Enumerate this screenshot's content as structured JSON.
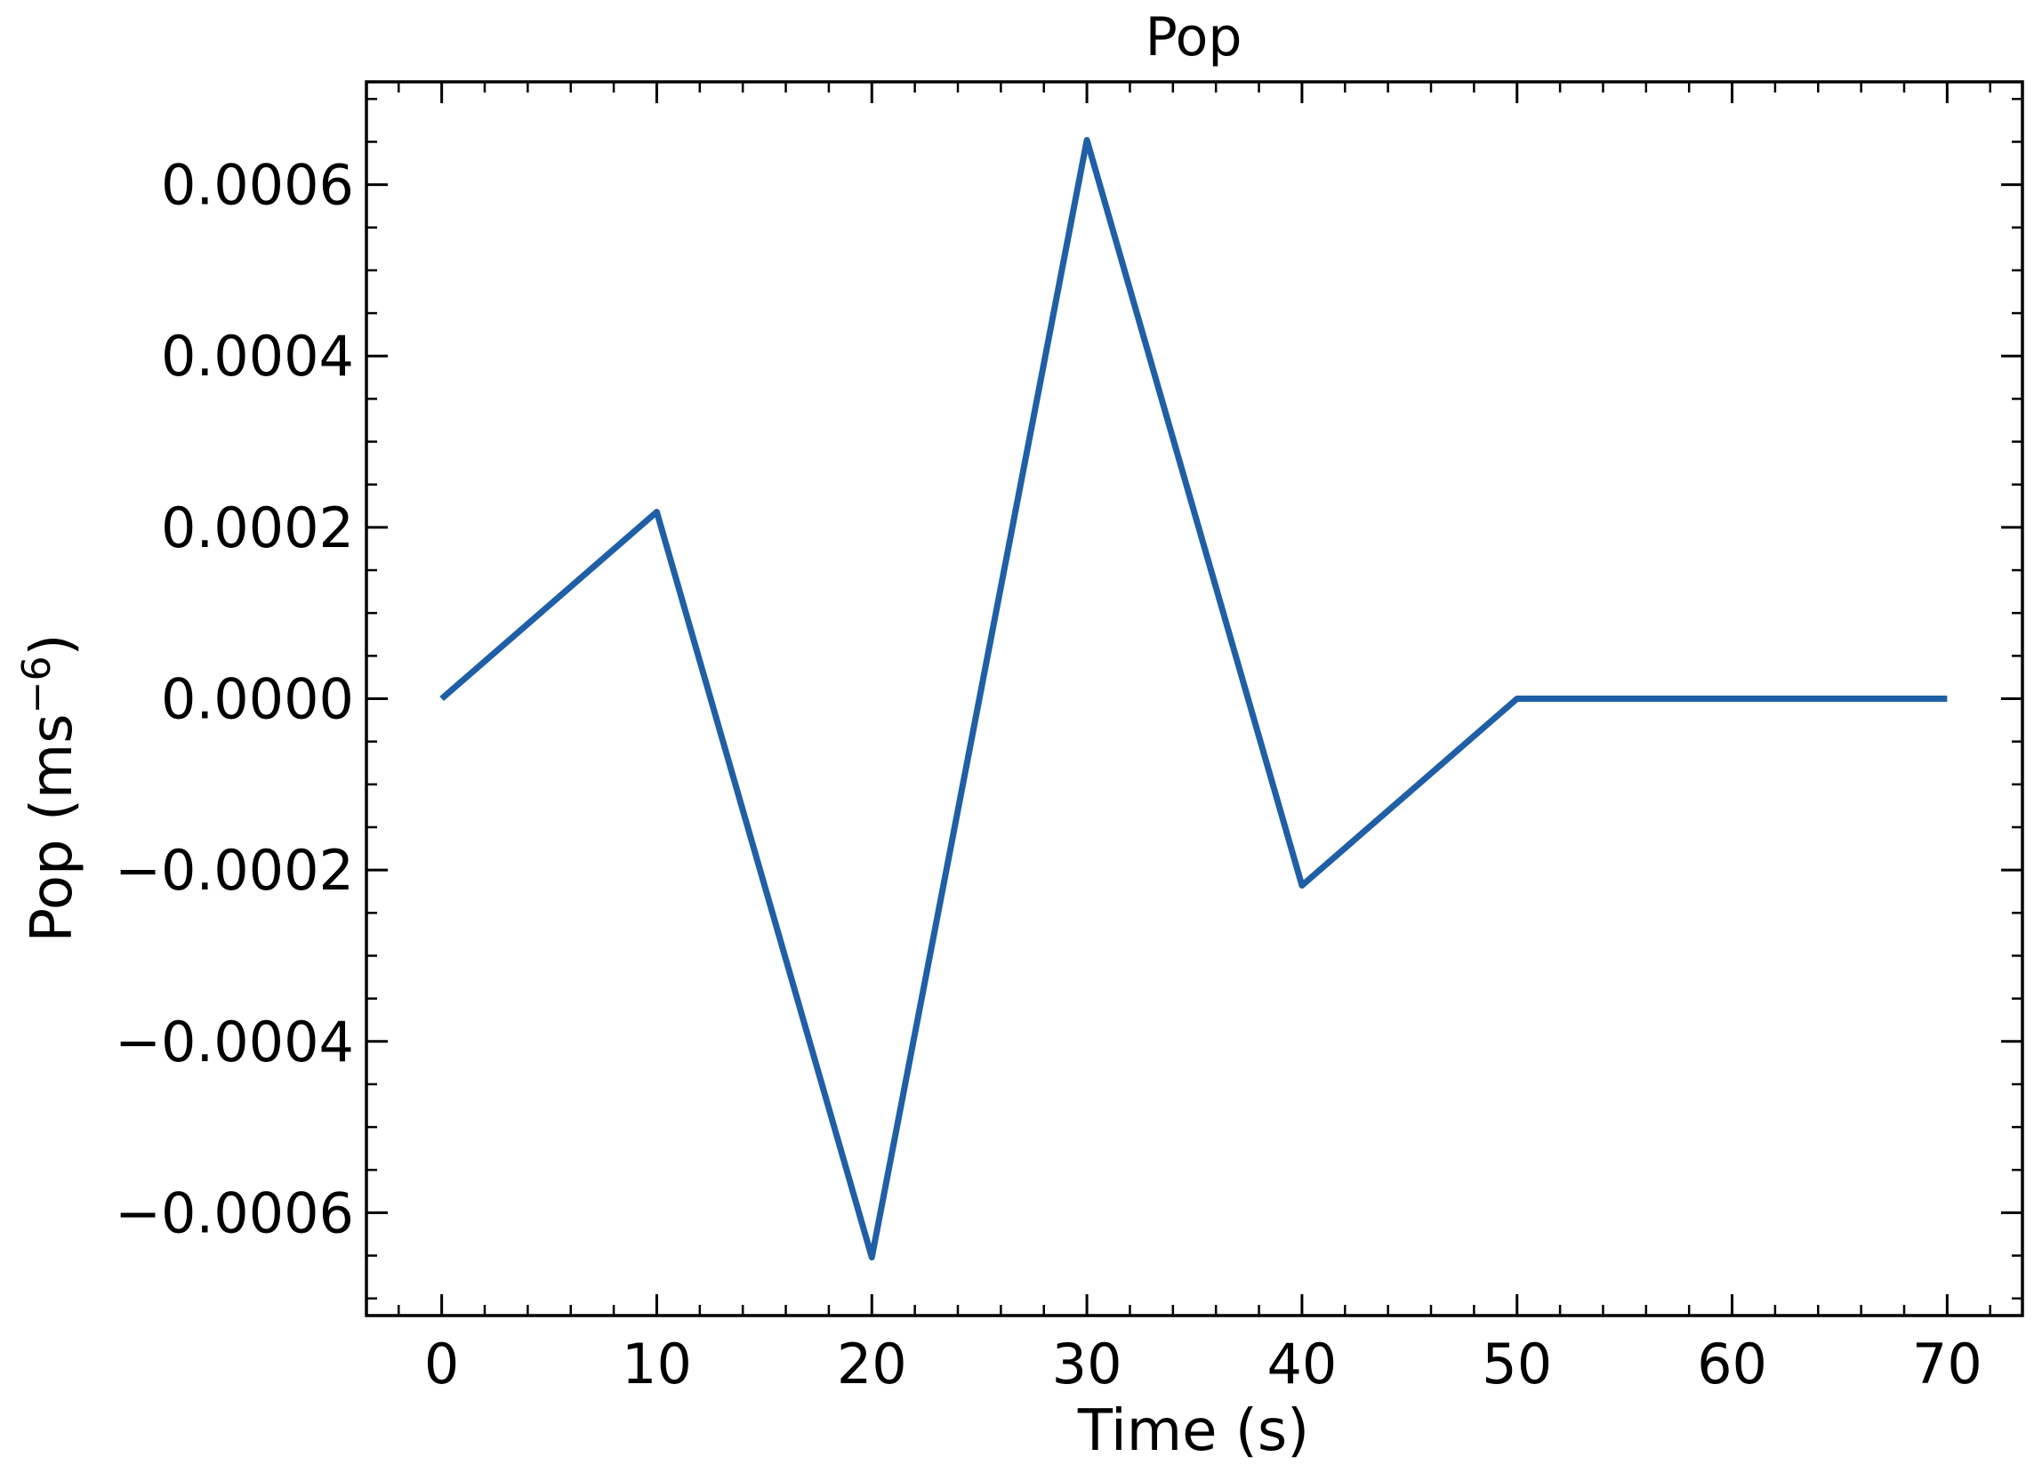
{
  "chart_data": {
    "type": "line",
    "title": "Pop",
    "xlabel": "Time (s)",
    "ylabel": "Pop (ms",
    "ylabel_sup": "−6",
    "ylabel_close": ")",
    "xlim": [
      -3.5,
      73.5
    ],
    "ylim": [
      -0.00072,
      0.00072
    ],
    "x_ticks": [
      0,
      10,
      20,
      30,
      40,
      50,
      60,
      70
    ],
    "x_tick_labels": [
      "0",
      "10",
      "20",
      "30",
      "40",
      "50",
      "60",
      "70"
    ],
    "y_ticks": [
      -0.0006,
      -0.0004,
      -0.0002,
      0,
      0.0002,
      0.0004,
      0.0006
    ],
    "y_tick_labels": [
      "−0.0006",
      "−0.0004",
      "−0.0002",
      "0.0000",
      "0.0002",
      "0.0004",
      "0.0006"
    ],
    "x_minor_step": 2,
    "y_minor_step": 5e-05,
    "grid": false,
    "series": [
      {
        "color": "#1f5fa6",
        "x": [
          0,
          10,
          20,
          30,
          40,
          50,
          70
        ],
        "y": [
          0,
          0.000218,
          -0.000652,
          0.000652,
          -0.000218,
          0,
          0
        ]
      }
    ]
  }
}
